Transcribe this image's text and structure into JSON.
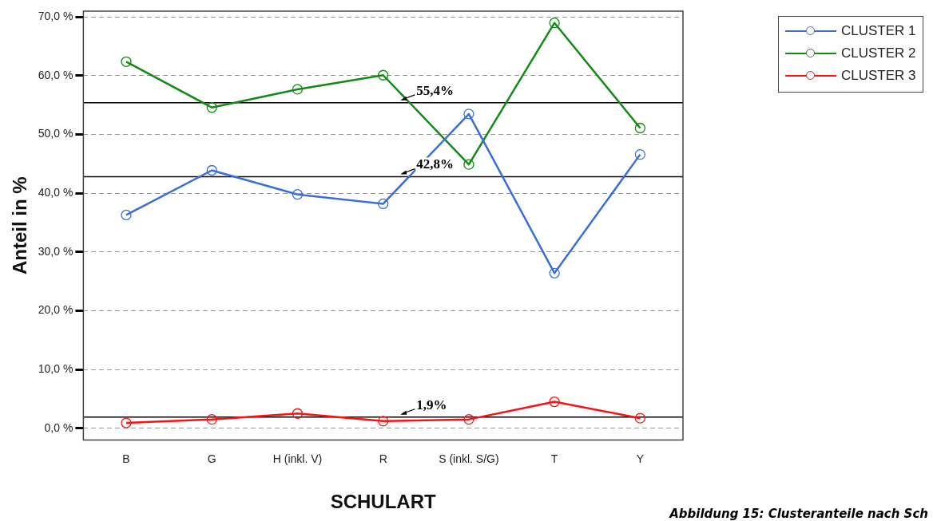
{
  "chart_data": {
    "type": "line",
    "xlabel": "SCHULART",
    "ylabel": "Anteil in %",
    "categories": [
      "B",
      "G",
      "H (inkl. V)",
      "R",
      "S (inkl. S/G)",
      "T",
      "Y"
    ],
    "series": [
      {
        "name": "CLUSTER 1",
        "color": "#3a6fd8",
        "values": [
          36.3,
          43.9,
          39.8,
          38.2,
          53.5,
          26.4,
          46.6
        ]
      },
      {
        "name": "CLUSTER 2",
        "color": "#138a13",
        "values": [
          62.4,
          54.6,
          57.7,
          60.1,
          44.9,
          69.0,
          51.1
        ]
      },
      {
        "name": "CLUSTER 3",
        "color": "#ff1010",
        "values": [
          0.9,
          1.5,
          2.5,
          1.2,
          1.5,
          4.5,
          1.7
        ]
      }
    ],
    "ylim": [
      -2,
      71
    ],
    "yticks": [
      {
        "value": 0,
        "label": "0,0 %"
      },
      {
        "value": 10,
        "label": "10,0 %"
      },
      {
        "value": 20,
        "label": "20,0 %"
      },
      {
        "value": 30,
        "label": "30,0 %"
      },
      {
        "value": 40,
        "label": "40,0 %"
      },
      {
        "value": 50,
        "label": "50,0 %"
      },
      {
        "value": 60,
        "label": "60,0 %"
      },
      {
        "value": 70,
        "label": "70,0 %"
      }
    ],
    "grid": "y",
    "legend": "top right",
    "marker": "circle",
    "line_style": "solid",
    "ref_lines": [
      {
        "axis": "y",
        "value": 55.4,
        "label": "55,4%",
        "color": "#000000"
      },
      {
        "axis": "y",
        "value": 42.8,
        "label": "42,8%",
        "color": "#000000"
      },
      {
        "axis": "y",
        "value": 1.9,
        "label": "1,9%",
        "color": "#000000"
      }
    ],
    "annotations": [
      "Abbildung 15: Clusteranteile nach Sch"
    ]
  }
}
